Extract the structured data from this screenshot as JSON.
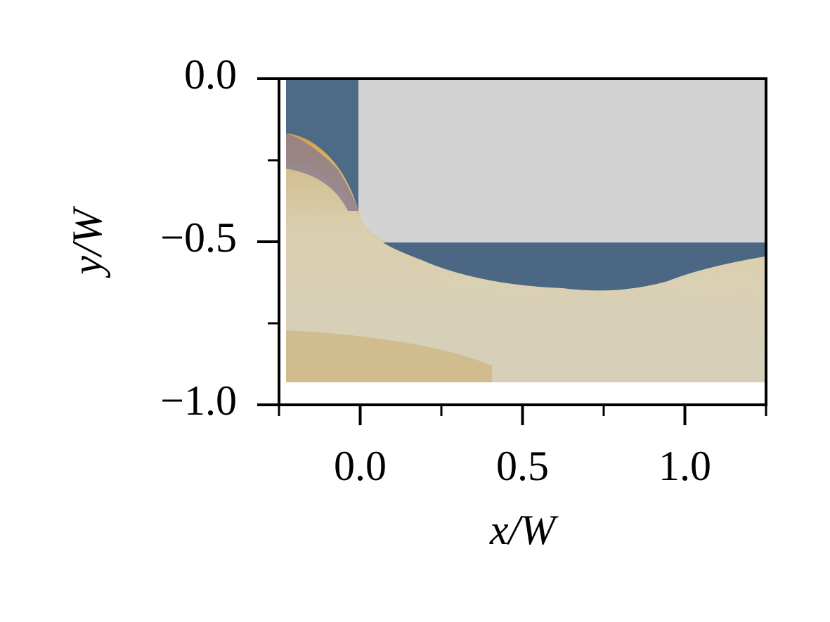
{
  "chart_data": {
    "type": "field",
    "xlabel": "x/W",
    "ylabel": "y/W",
    "xlim": [
      -0.25,
      1.25
    ],
    "ylim": [
      -1.0,
      0.0
    ],
    "xticks": [
      {
        "value": 0,
        "label": "0.0"
      },
      {
        "value": 0.5,
        "label": "0.5"
      },
      {
        "value": 1,
        "label": "1.0"
      }
    ],
    "xminorticks": [
      -0.25,
      0.25,
      0.75,
      1.25
    ],
    "yticks": [
      {
        "value": -1,
        "label": "−1.0"
      },
      {
        "value": -0.5,
        "label": "−0.5"
      },
      {
        "value": 0,
        "label": "0.0"
      }
    ],
    "yminorticks": [
      -0.75,
      -0.25
    ]
  }
}
